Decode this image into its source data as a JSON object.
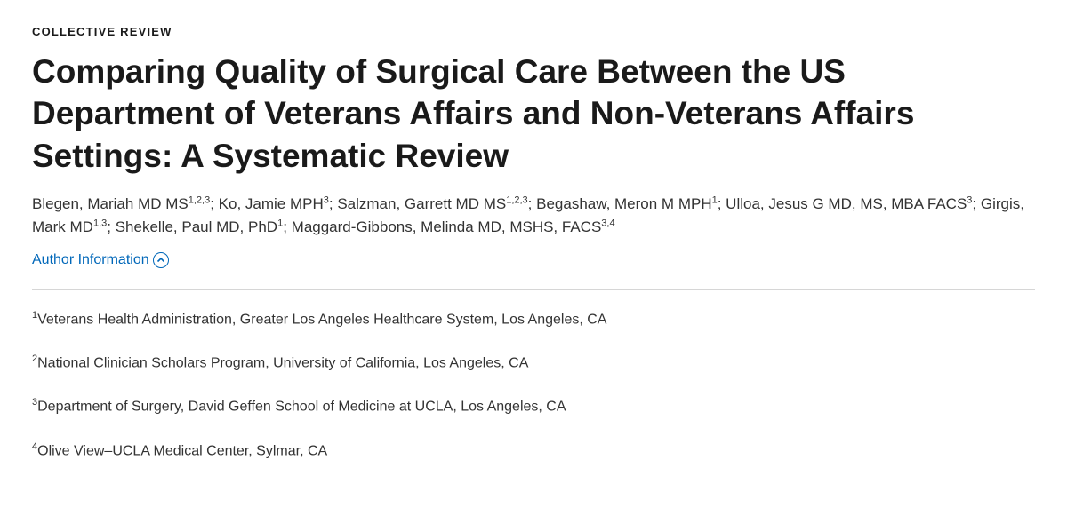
{
  "article_type": "COLLECTIVE REVIEW",
  "title": "Comparing Quality of Surgical Care Between the US Department of Veterans Affairs and Non-Veterans Affairs Settings: A Systematic Review",
  "authors": [
    {
      "name": "Blegen, Mariah MD MS",
      "refs": "1,2,3"
    },
    {
      "name": "Ko, Jamie MPH",
      "refs": "3"
    },
    {
      "name": "Salzman, Garrett MD MS",
      "refs": "1,2,3"
    },
    {
      "name": "Begashaw, Meron M MPH",
      "refs": "1"
    },
    {
      "name": "Ulloa, Jesus G MD, MS, MBA FACS",
      "refs": "3"
    },
    {
      "name": "Girgis, Mark MD",
      "refs": "1,3"
    },
    {
      "name": "Shekelle, Paul MD, PhD",
      "refs": "1"
    },
    {
      "name": "Maggard-Gibbons, Melinda MD, MSHS, FACS",
      "refs": "3,4"
    }
  ],
  "author_info_label": "Author Information",
  "affiliations": [
    {
      "num": "1",
      "text": "Veterans Health Administration, Greater Los Angeles Healthcare System, Los Angeles, CA"
    },
    {
      "num": "2",
      "text": "National Clinician Scholars Program, University of California, Los Angeles, CA"
    },
    {
      "num": "3",
      "text": "Department of Surgery, David Geffen School of Medicine at UCLA, Los Angeles, CA"
    },
    {
      "num": "4",
      "text": "Olive View–UCLA Medical Center, Sylmar, CA"
    }
  ],
  "colors": {
    "link": "#0067b9",
    "text": "#1a1a1a",
    "divider": "#d6d6d6"
  }
}
